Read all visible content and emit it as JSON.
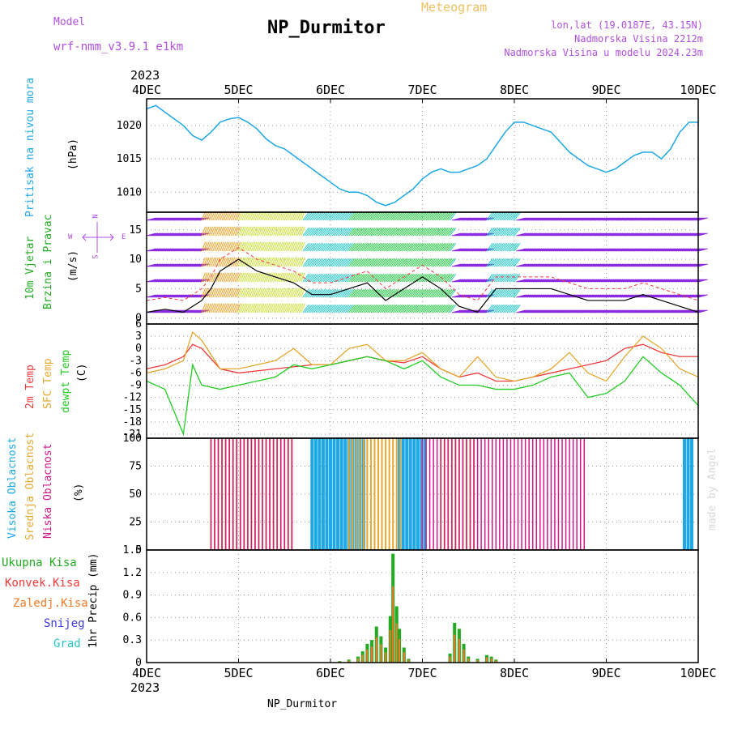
{
  "header": {
    "model_label": "Model",
    "model_name": "wrf-nmm_v3.9.1 e1km",
    "meteogram_label": "Meteogram",
    "station": "NP_Durmitor",
    "lonlat": "lon,lat (19.0187E, 43.15N)",
    "altitude": "Nadmorska Visina 2212m",
    "model_altitude": "Nadmorska Visina u modelu 2024.23m",
    "watermark": "made by Angel",
    "footer_station": "NP_Durmitor"
  },
  "colors": {
    "pressure": "#1ea8e6",
    "temp2m": "#f03a3a",
    "sfctemp": "#e6a830",
    "dewpt": "#22cc22",
    "high_cloud": "#1ea8e6",
    "mid_cloud": "#e6a830",
    "low_cloud": "#d01888",
    "total_precip": "#22aa22",
    "conv_precip": "#f03a3a",
    "frz_precip": "#f07a2a",
    "snow": "#3a3ae6",
    "graupel": "#2ac8c8",
    "header_purple": "#b050e0",
    "header_orange": "#f0c060"
  },
  "x_axis": {
    "year": "2023",
    "ticks": [
      "4DEC",
      "5DEC",
      "6DEC",
      "7DEC",
      "8DEC",
      "9DEC",
      "10DEC"
    ]
  },
  "panel_labels": {
    "pressure_title": "Pritisak na nivou mora",
    "pressure_unit": "(hPa)",
    "wind_title1": "10m Vjetar",
    "wind_title2": "Brzina i Pravac",
    "wind_unit": "(m/s)",
    "temp_title1": "2m Temp",
    "temp_title2": "SFC Temp",
    "temp_title3": "dewpt Temp",
    "temp_unit": "(C)",
    "cloud_title1": "Visoka Oblacnost",
    "cloud_title2": "Srednja Oblacnost",
    "cloud_title3": "Niska Oblacnost",
    "cloud_unit": "(%)",
    "precip_title": "1hr Precip (mm)",
    "legend_total": "Ukupna Kisa",
    "legend_conv": "Konvek.Kisa",
    "legend_frz": "Zaledj.Kisa",
    "legend_snow": "Snijeg",
    "legend_graupel": "Grad"
  },
  "compass": {
    "n": "N",
    "s": "S",
    "e": "E",
    "w": "W"
  },
  "chart_data": [
    {
      "type": "line",
      "name": "pressure",
      "ylabel": "(hPa)",
      "ylim": [
        1007,
        1024
      ],
      "yticks": [
        1010,
        1015,
        1020
      ],
      "x_days": [
        0,
        0.1,
        0.2,
        0.3,
        0.4,
        0.5,
        0.6,
        0.7,
        0.8,
        0.9,
        1.0,
        1.1,
        1.2,
        1.3,
        1.4,
        1.5,
        1.6,
        1.7,
        1.8,
        1.9,
        2.0,
        2.1,
        2.2,
        2.3,
        2.4,
        2.5,
        2.6,
        2.7,
        2.8,
        2.9,
        3.0,
        3.1,
        3.2,
        3.3,
        3.4,
        3.5,
        3.6,
        3.7,
        3.8,
        3.9,
        4.0,
        4.1,
        4.2,
        4.3,
        4.4,
        4.5,
        4.6,
        4.7,
        4.8,
        4.9,
        5.0,
        5.1,
        5.2,
        5.3,
        5.4,
        5.5,
        5.6,
        5.7,
        5.8,
        5.9,
        6.0
      ],
      "values": [
        1022.5,
        1023,
        1022,
        1021,
        1020,
        1018.5,
        1017.8,
        1019,
        1020.5,
        1021,
        1021.2,
        1020.5,
        1019.5,
        1018,
        1017,
        1016.5,
        1015.5,
        1014.5,
        1013.5,
        1012.5,
        1011.5,
        1010.5,
        1010,
        1010,
        1009.5,
        1008.5,
        1008,
        1008.5,
        1009.5,
        1010.5,
        1012,
        1013,
        1013.5,
        1013,
        1013,
        1013.5,
        1014,
        1015,
        1017,
        1019,
        1020.5,
        1020.5,
        1020,
        1019.5,
        1019,
        1017.5,
        1016,
        1015,
        1014,
        1013.5,
        1013,
        1013.5,
        1014.5,
        1015.5,
        1016,
        1016,
        1015,
        1016.5,
        1019,
        1020.5,
        1020.5
      ]
    },
    {
      "type": "line",
      "name": "wind",
      "ylabel": "(m/s)",
      "ylim": [
        -1,
        18
      ],
      "yticks": [
        0,
        5,
        10,
        15
      ],
      "x_days": [
        0,
        0.2,
        0.4,
        0.5,
        0.6,
        0.7,
        0.8,
        1.0,
        1.2,
        1.4,
        1.6,
        1.8,
        2.0,
        2.2,
        2.4,
        2.6,
        2.8,
        3.0,
        3.2,
        3.4,
        3.6,
        3.8,
        4.0,
        4.2,
        4.4,
        4.6,
        4.8,
        5.0,
        5.2,
        5.4,
        5.6,
        5.8,
        6.0
      ],
      "speed": [
        1,
        1.5,
        1,
        2,
        3,
        5,
        8,
        10,
        8,
        7,
        6,
        4,
        4,
        5,
        6,
        3,
        5,
        7,
        5,
        2,
        1,
        5,
        5,
        5,
        5,
        4,
        3,
        3,
        3,
        4,
        3,
        2,
        1
      ]
    },
    {
      "type": "line",
      "name": "temperature",
      "ylabel": "(C)",
      "ylim": [
        -22,
        6
      ],
      "yticks": [
        6,
        3,
        0,
        -3,
        -6,
        -9,
        -12,
        -15,
        -18,
        -21
      ],
      "x_days": [
        0,
        0.2,
        0.4,
        0.5,
        0.6,
        0.8,
        1.0,
        1.2,
        1.4,
        1.6,
        1.8,
        2.0,
        2.2,
        2.4,
        2.6,
        2.8,
        3.0,
        3.2,
        3.4,
        3.6,
        3.8,
        4.0,
        4.2,
        4.4,
        4.6,
        4.8,
        5.0,
        5.2,
        5.4,
        5.6,
        5.8,
        6.0
      ],
      "series": [
        {
          "name": "2m Temp",
          "values": [
            -5,
            -4,
            -2,
            1,
            0,
            -5,
            -6,
            -5.5,
            -5,
            -4.5,
            -4,
            -4,
            -3,
            -2,
            -3,
            -3.5,
            -2,
            -5,
            -7,
            -6,
            -8,
            -8,
            -7,
            -6,
            -5,
            -4,
            -3,
            0,
            1,
            -1,
            -2,
            -2
          ]
        },
        {
          "name": "SFC Temp",
          "values": [
            -6,
            -5,
            -3,
            4,
            2,
            -5,
            -5,
            -4,
            -3,
            0,
            -4,
            -4,
            0,
            1,
            -3,
            -3,
            -1,
            -5,
            -7,
            -2,
            -7,
            -8,
            -7,
            -5,
            -1,
            -6,
            -8,
            -2,
            3,
            0,
            -5,
            -7
          ]
        },
        {
          "name": "dewpt Temp",
          "values": [
            -8,
            -10,
            -21,
            -4,
            -9,
            -10,
            -9,
            -8,
            -7,
            -4,
            -5,
            -4,
            -3,
            -2,
            -3,
            -5,
            -3,
            -7,
            -9,
            -9,
            -10,
            -10,
            -9,
            -7,
            -6,
            -12,
            -11,
            -8,
            -2,
            -6,
            -9,
            -14
          ]
        }
      ]
    },
    {
      "type": "bar",
      "name": "cloud",
      "ylabel": "(%)",
      "ylim": [
        0,
        100
      ],
      "yticks": [
        0,
        25,
        50,
        75,
        100
      ],
      "series": [
        {
          "name": "Visoka Oblacnost",
          "segments_days": [
            [
              1.8,
              2.4
            ],
            [
              2.75,
              3.05
            ],
            [
              5.85,
              5.95
            ]
          ],
          "value": 100
        },
        {
          "name": "Srednja Oblacnost",
          "segments_days": [
            [
              0.7,
              1.6
            ],
            [
              2.2,
              2.8
            ],
            [
              3.2,
              3.6
            ]
          ],
          "value": 100
        },
        {
          "name": "Niska Oblacnost",
          "segments_days": [
            [
              0.7,
              1.6
            ],
            [
              3.0,
              4.8
            ]
          ],
          "value": 100
        }
      ]
    },
    {
      "type": "bar",
      "name": "precip",
      "ylabel": "1hr Precip (mm)",
      "ylim": [
        0,
        1.5
      ],
      "yticks": [
        0,
        0.3,
        0.6,
        0.9,
        1.2,
        1.5
      ],
      "x_days": [
        2.1,
        2.2,
        2.3,
        2.35,
        2.4,
        2.45,
        2.5,
        2.55,
        2.6,
        2.65,
        2.68,
        2.72,
        2.75,
        2.8,
        2.85,
        3.3,
        3.35,
        3.4,
        3.45,
        3.5,
        3.6,
        3.7,
        3.75,
        3.8
      ],
      "values": [
        0.02,
        0.04,
        0.08,
        0.15,
        0.25,
        0.3,
        0.48,
        0.35,
        0.2,
        0.62,
        1.45,
        0.75,
        0.45,
        0.2,
        0.05,
        0.12,
        0.53,
        0.45,
        0.25,
        0.08,
        0.05,
        0.1,
        0.08,
        0.04
      ]
    }
  ]
}
